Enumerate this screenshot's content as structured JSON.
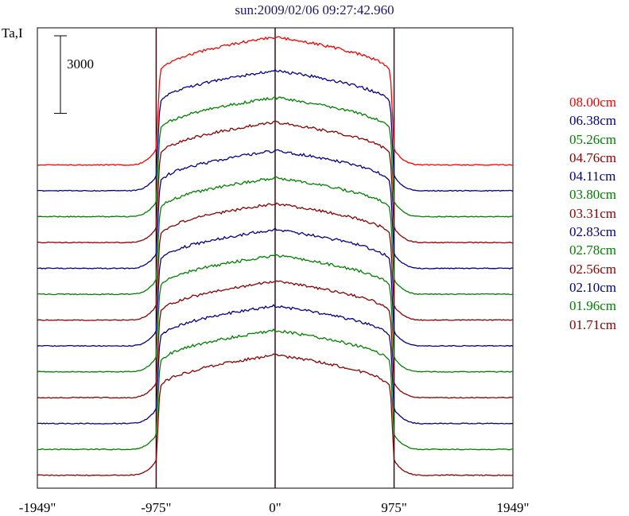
{
  "chart_data": {
    "type": "line",
    "title": "sun:2009/02/06 09:27:42.960",
    "ylabel": "Ta,I",
    "scale_bar_label": "3000",
    "scale_bar_value": 3000,
    "xlim": [
      -1949,
      1949
    ],
    "x_ticks": [
      {
        "value": -1949,
        "label": "-1949\""
      },
      {
        "value": -975,
        "label": "-975\""
      },
      {
        "value": 0,
        "label": "0\""
      },
      {
        "value": 975,
        "label": "975\""
      },
      {
        "value": 1949,
        "label": "1949\""
      }
    ],
    "vertical_markers": [
      -975,
      0,
      975
    ],
    "profile_description": "each trace is a solar scan: flat background, sharp rise near the limb (±975\"), broad plateau across the disk",
    "series": [
      {
        "name": "08.00cm",
        "color": "#ff0000",
        "baseline": 0,
        "disk_height": 4950
      },
      {
        "name": "06.38cm",
        "color": "#00008b",
        "baseline": -1000,
        "disk_height": 4650
      },
      {
        "name": "05.26cm",
        "color": "#008000",
        "baseline": -2000,
        "disk_height": 4600
      },
      {
        "name": "04.76cm",
        "color": "#8b0000",
        "baseline": -3000,
        "disk_height": 4650
      },
      {
        "name": "04.11cm",
        "color": "#00008b",
        "baseline": -4000,
        "disk_height": 4550
      },
      {
        "name": "03.80cm",
        "color": "#008000",
        "baseline": -5000,
        "disk_height": 4500
      },
      {
        "name": "03.31cm",
        "color": "#8b0000",
        "baseline": -6000,
        "disk_height": 4500
      },
      {
        "name": "02.83cm",
        "color": "#00008b",
        "baseline": -7000,
        "disk_height": 4500
      },
      {
        "name": "02.78cm",
        "color": "#008000",
        "baseline": -8000,
        "disk_height": 4500
      },
      {
        "name": "02.56cm",
        "color": "#8b0000",
        "baseline": -9000,
        "disk_height": 4500
      },
      {
        "name": "02.10cm",
        "color": "#00008b",
        "baseline": -10000,
        "disk_height": 4550
      },
      {
        "name": "01.96cm",
        "color": "#008000",
        "baseline": -11000,
        "disk_height": 4600
      },
      {
        "name": "01.71cm",
        "color": "#8b0000",
        "baseline": -12000,
        "disk_height": 4650
      }
    ],
    "ylim": [
      -12500,
      5300
    ],
    "grid": false,
    "legend_placement": "right"
  }
}
